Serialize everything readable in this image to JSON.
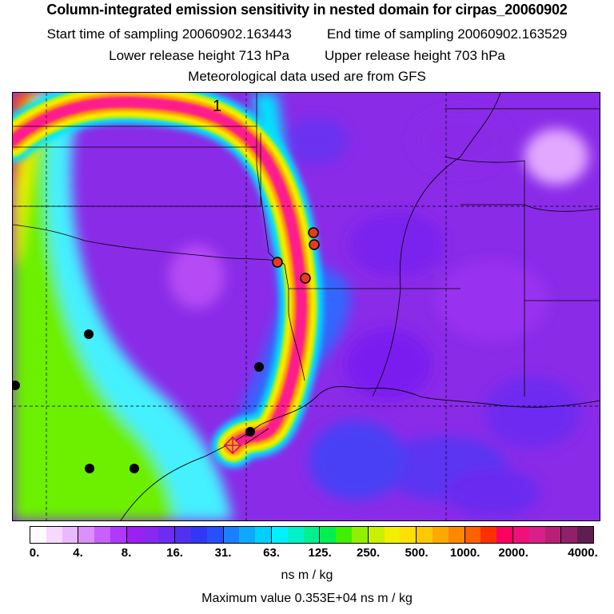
{
  "title": "Column-integrated emission sensitivity in nested domain for cirpas_20060902",
  "sampling": {
    "start_label": "Start time of sampling 20060902.163443",
    "end_label": "End time of sampling 20060902.163529"
  },
  "release": {
    "lower_label": "Lower release height  713 hPa",
    "upper_label": "Upper release height  703 hPa"
  },
  "met_label": "Meteorological data used are from GFS",
  "map": {
    "plume_label": "1",
    "colors": {
      "background_purple": "#8a2be8",
      "plume_core": "#ff1a8c",
      "plume_orange": "#ffa500",
      "plume_yellow": "#ffee00",
      "plume_cyan": "#00e5ff",
      "west_green": "#6cf000",
      "west_cyan": "#44f0ff",
      "gulf_blue": "#3366ff",
      "black_marker": "#000000",
      "red_marker": "#e8391d"
    }
  },
  "colorbar": {
    "colors": [
      "#fffaff",
      "#f7d8ff",
      "#eab8ff",
      "#dc90ff",
      "#c860ff",
      "#b038ff",
      "#9c20f2",
      "#8828f0",
      "#6e2cf0",
      "#5230f0",
      "#3038f5",
      "#2650ff",
      "#1a80ff",
      "#10a8ff",
      "#00d0ff",
      "#00f0ff",
      "#00f0c8",
      "#00f090",
      "#00f050",
      "#40f000",
      "#90f000",
      "#c8f000",
      "#f0f000",
      "#ffe000",
      "#ffc800",
      "#ffa800",
      "#ff8800",
      "#ff6000",
      "#ff3000",
      "#ff0060",
      "#f0107a",
      "#d82088",
      "#b82078",
      "#90206a",
      "#601e50"
    ],
    "tick_labels": [
      "0.",
      "4.",
      "8.",
      "16.",
      "31.",
      "63.",
      "125.",
      "250.",
      "500.",
      "1000.",
      "2000.",
      "4000."
    ],
    "units": "ns m / kg"
  },
  "max_value_label": "Maximum value  0.353E+04 ns m / kg"
}
